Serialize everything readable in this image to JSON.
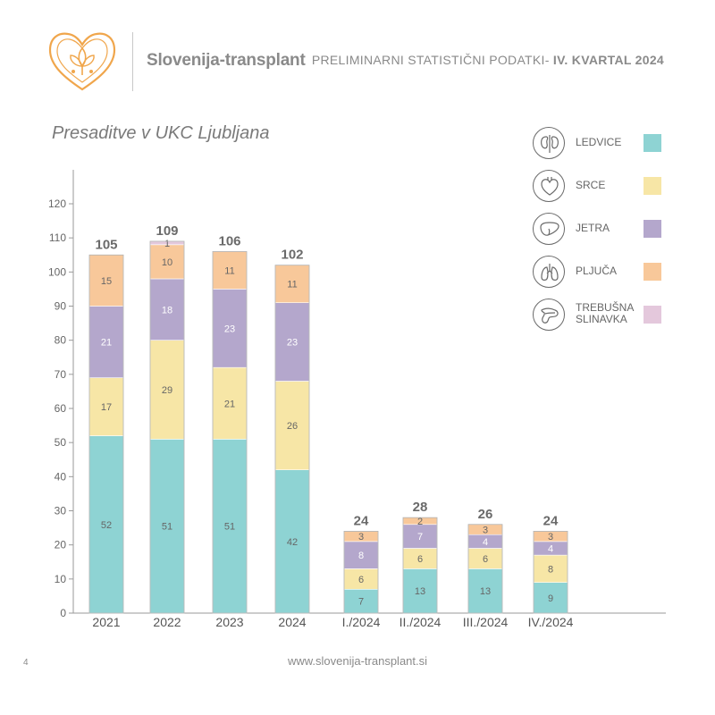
{
  "header": {
    "org_name": "Slovenija-transplant",
    "report_prefix": "PRELIMINARNI STATISTIČNI PODATKI-",
    "report_quarter": "IV. KVARTAL 2024"
  },
  "legend": [
    {
      "label_lines": [
        "LEDVICE"
      ],
      "icon": "kidney-icon",
      "color": "#8ed3d3"
    },
    {
      "label_lines": [
        "SRCE"
      ],
      "icon": "heart-icon",
      "color": "#f7e6a6"
    },
    {
      "label_lines": [
        "JETRA"
      ],
      "icon": "liver-icon",
      "color": "#b4a7cc"
    },
    {
      "label_lines": [
        "PLJUČA"
      ],
      "icon": "lungs-icon",
      "color": "#f8c89a"
    },
    {
      "label_lines": [
        "TREBUŠNA",
        "SLINAVKA"
      ],
      "icon": "pancreas-icon",
      "color": "#e4c8dc"
    }
  ],
  "chart_data": {
    "type": "bar",
    "stacked": true,
    "title": "Presaditve v UKC Ljubljana",
    "xlabel": "",
    "ylabel": "",
    "ylim": [
      0,
      120
    ],
    "yticks": [
      0,
      10,
      20,
      30,
      40,
      50,
      60,
      70,
      80,
      90,
      100,
      110,
      120
    ],
    "grid": false,
    "legend_position": "top-right",
    "categories": [
      "2021",
      "2022",
      "2023",
      "2024",
      "I./2024",
      "II./2024",
      "III./2024",
      "IV./2024"
    ],
    "totals": [
      105,
      109,
      106,
      102,
      24,
      28,
      26,
      24
    ],
    "series": [
      {
        "name": "LEDVICE",
        "color": "#8ed3d3",
        "values": [
          52,
          51,
          51,
          42,
          7,
          13,
          13,
          9
        ]
      },
      {
        "name": "SRCE",
        "color": "#f7e6a6",
        "values": [
          17,
          29,
          21,
          26,
          6,
          6,
          6,
          8
        ]
      },
      {
        "name": "JETRA",
        "color": "#b4a7cc",
        "values": [
          21,
          18,
          23,
          23,
          8,
          7,
          4,
          4
        ]
      },
      {
        "name": "PLJUČA",
        "color": "#f8c89a",
        "values": [
          15,
          10,
          11,
          11,
          3,
          2,
          3,
          3
        ]
      },
      {
        "name": "TREBUŠNA SLINAVKA",
        "color": "#e4c8dc",
        "values": [
          0,
          1,
          0,
          0,
          0,
          0,
          0,
          0
        ]
      }
    ]
  },
  "footer": {
    "url": "www.slovenija-transplant.si",
    "page_number": "4"
  }
}
